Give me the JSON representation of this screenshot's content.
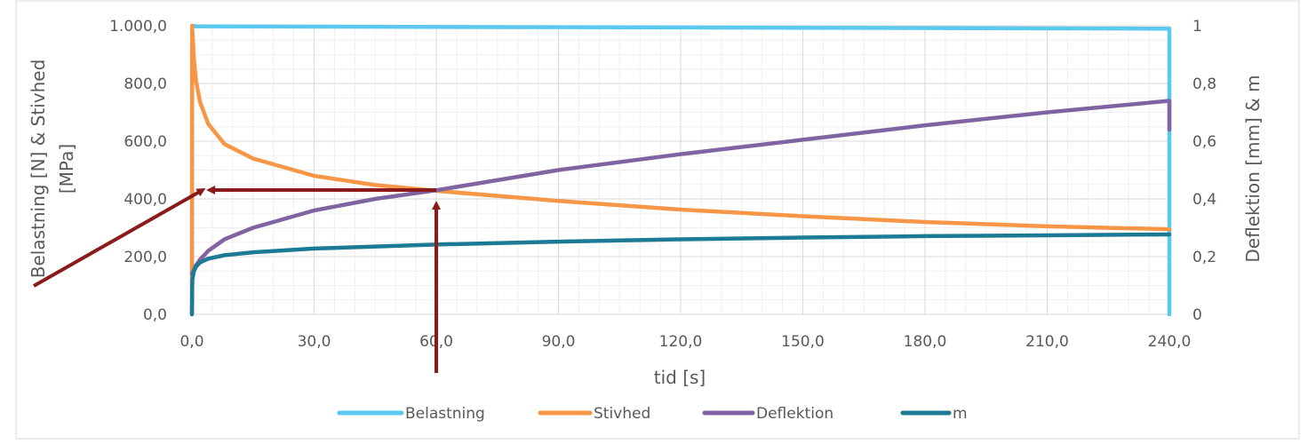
{
  "chart_data": {
    "type": "line",
    "title": "",
    "xlabel": "tid [s]",
    "ylabel_left": [
      "Belastning [N] & Stivhed",
      "[MPa]"
    ],
    "ylabel_right": "Deflektion [mm] & m",
    "xlim": [
      0,
      240
    ],
    "ylim_left": [
      0,
      1000
    ],
    "ylim_right": [
      0,
      1
    ],
    "x_ticks": [
      "0,0",
      "30,0",
      "60,0",
      "90,0",
      "120,0",
      "150,0",
      "180,0",
      "210,0",
      "240,0"
    ],
    "y_left_ticks": [
      "0,0",
      "200,0",
      "400,0",
      "600,0",
      "800,0",
      "1.000,0"
    ],
    "y_right_ticks": [
      "0",
      "0,2",
      "0,4",
      "0,6",
      "0,8",
      "1"
    ],
    "grid": true,
    "legend_position": "bottom",
    "series": [
      {
        "name": "Belastning",
        "axis": "left",
        "color": "#5bc8ee",
        "x": [
          0,
          0.05,
          1,
          240,
          240
        ],
        "y": [
          0,
          1000,
          998,
          990,
          0
        ]
      },
      {
        "name": "Stivhed",
        "axis": "left",
        "color": "#f79646",
        "x": [
          0,
          0.05,
          0.5,
          1,
          2,
          4,
          8,
          15,
          30,
          45,
          60,
          90,
          120,
          150,
          180,
          210,
          240
        ],
        "y": [
          0,
          1000,
          880,
          810,
          735,
          660,
          590,
          540,
          480,
          448,
          428,
          393,
          363,
          340,
          320,
          305,
          295
        ]
      },
      {
        "name": "Deflektion",
        "axis": "right",
        "color": "#8064a2",
        "x": [
          0,
          1,
          2,
          4,
          8,
          15,
          30,
          45,
          60,
          90,
          120,
          150,
          180,
          210,
          240,
          240
        ],
        "y": [
          0.14,
          0.17,
          0.19,
          0.22,
          0.26,
          0.3,
          0.36,
          0.4,
          0.43,
          0.5,
          0.555,
          0.605,
          0.655,
          0.7,
          0.74,
          0.64
        ]
      },
      {
        "name": "m",
        "axis": "right",
        "color": "#1c7a94",
        "x": [
          0,
          0.1,
          0.5,
          1,
          2,
          4,
          8,
          15,
          30,
          60,
          90,
          120,
          150,
          180,
          210,
          240
        ],
        "y": [
          0,
          0.12,
          0.15,
          0.165,
          0.18,
          0.193,
          0.205,
          0.215,
          0.228,
          0.242,
          0.252,
          0.26,
          0.266,
          0.271,
          0.274,
          0.277
        ]
      }
    ],
    "annotations": [
      {
        "type": "arrow",
        "color": "#8b1a1a",
        "from": {
          "x": 0,
          "y_left": 0
        },
        "to": {
          "x": 0,
          "y_left": 430
        }
      },
      {
        "type": "arrow",
        "color": "#8b1a1a",
        "from": {
          "x": 60,
          "y_left": 430
        },
        "to": {
          "x": 0,
          "y_left": 430
        }
      },
      {
        "type": "arrow",
        "color": "#8b1a1a",
        "from": {
          "x": 60,
          "y_left": 0
        },
        "to": {
          "x": 60,
          "y_left": 430
        }
      }
    ]
  }
}
